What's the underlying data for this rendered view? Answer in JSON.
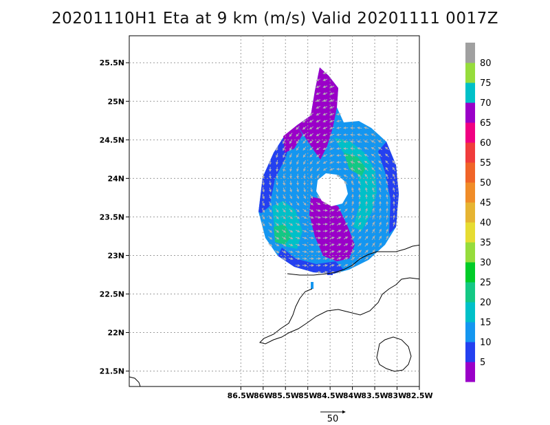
{
  "title": "20201110H1 Eta at 9 km (m/s) Valid 20201111 0017Z",
  "map": {
    "lon_range": [
      -89.0,
      -82.5
    ],
    "lat_range": [
      21.3,
      25.85
    ],
    "x_ticks": [
      {
        "lon": -86.5,
        "label": "86.5W"
      },
      {
        "lon": -86.0,
        "label": "86W"
      },
      {
        "lon": -85.5,
        "label": "85.5W"
      },
      {
        "lon": -85.0,
        "label": "85W"
      },
      {
        "lon": -84.5,
        "label": "84.5W"
      },
      {
        "lon": -84.0,
        "label": "84W"
      },
      {
        "lon": -83.5,
        "label": "83.5W"
      },
      {
        "lon": -83.0,
        "label": "83W"
      },
      {
        "lon": -82.5,
        "label": "82.5W"
      }
    ],
    "y_ticks": [
      {
        "lat": 21.5,
        "label": "21.5N"
      },
      {
        "lat": 22.0,
        "label": "22N"
      },
      {
        "lat": 22.5,
        "label": "22.5N"
      },
      {
        "lat": 23.0,
        "label": "23N"
      },
      {
        "lat": 23.5,
        "label": "23.5N"
      },
      {
        "lat": 24.0,
        "label": "24N"
      },
      {
        "lat": 24.5,
        "label": "24.5N"
      },
      {
        "lat": 25.0,
        "label": "25N"
      },
      {
        "lat": 25.5,
        "label": "25.5N"
      }
    ],
    "grid": true
  },
  "colorbar": {
    "labels": [
      "5",
      "10",
      "15",
      "20",
      "25",
      "30",
      "35",
      "40",
      "45",
      "50",
      "55",
      "60",
      "65",
      "70",
      "75",
      "80"
    ],
    "colors": [
      "#9a00c8",
      "#2440f0",
      "#1496f0",
      "#00c0c8",
      "#14c884",
      "#00cc28",
      "#96dc3c",
      "#e6dc32",
      "#e6b432",
      "#f08c28",
      "#f06428",
      "#f03c3c",
      "#f00082",
      "#9a00c8",
      "#00c0c8",
      "#96dc3c",
      "#a0a0a0"
    ]
  },
  "vector_reference": {
    "label": "50"
  }
}
